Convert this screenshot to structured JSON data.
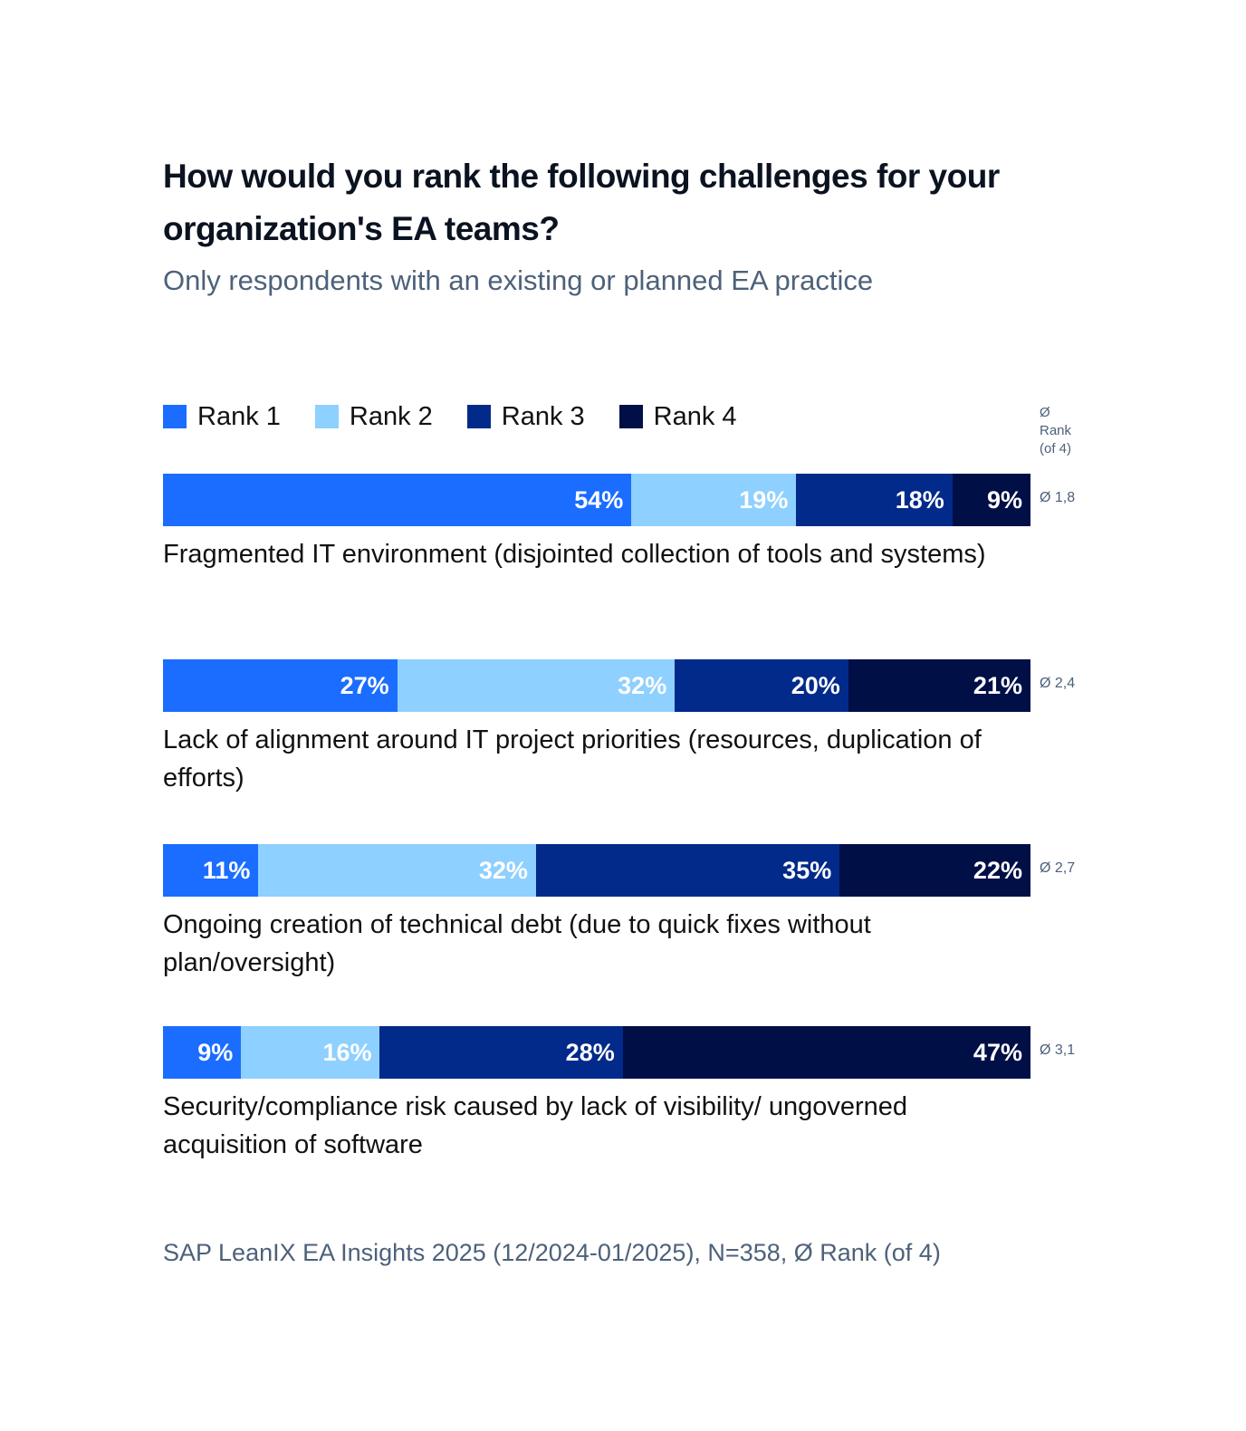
{
  "title": "How would you rank the following challenges for your organization's EA teams?",
  "subtitle": "Only respondents with an existing or planned EA practice",
  "avg_header": [
    "Ø",
    "Rank",
    "(of 4)"
  ],
  "source": "SAP LeanIX EA Insights 2025 (12/2024-01/2025), N=358, Ø Rank (of 4)",
  "colors": {
    "Rank 1": "#1b6dff",
    "Rank 2": "#8ed0ff",
    "Rank 3": "#022a8a",
    "Rank 4": "#010f47"
  },
  "chart_data": {
    "type": "bar",
    "orientation": "horizontal",
    "stacked": true,
    "unit": "%",
    "legend": [
      "Rank 1",
      "Rank 2",
      "Rank 3",
      "Rank 4"
    ],
    "legend_position": "top-left",
    "categories": [
      "Fragmented IT environment (disjointed collection of tools and systems)",
      "Lack of alignment around IT project priorities (resources, duplication of efforts)",
      "Ongoing creation of technical debt (due to quick fixes without plan/oversight)",
      "Security/compliance risk caused by lack of visibility/ ungoverned acquisition of software"
    ],
    "series": [
      {
        "name": "Rank 1",
        "values": [
          54,
          27,
          11,
          9
        ]
      },
      {
        "name": "Rank 2",
        "values": [
          19,
          32,
          32,
          16
        ]
      },
      {
        "name": "Rank 3",
        "values": [
          18,
          20,
          35,
          28
        ]
      },
      {
        "name": "Rank 4",
        "values": [
          9,
          21,
          22,
          47
        ]
      }
    ],
    "avg_rank": [
      "Ø 1,8",
      "Ø 2,4",
      "Ø 2,7",
      "Ø 3,1"
    ],
    "xlim": [
      0,
      100
    ]
  }
}
